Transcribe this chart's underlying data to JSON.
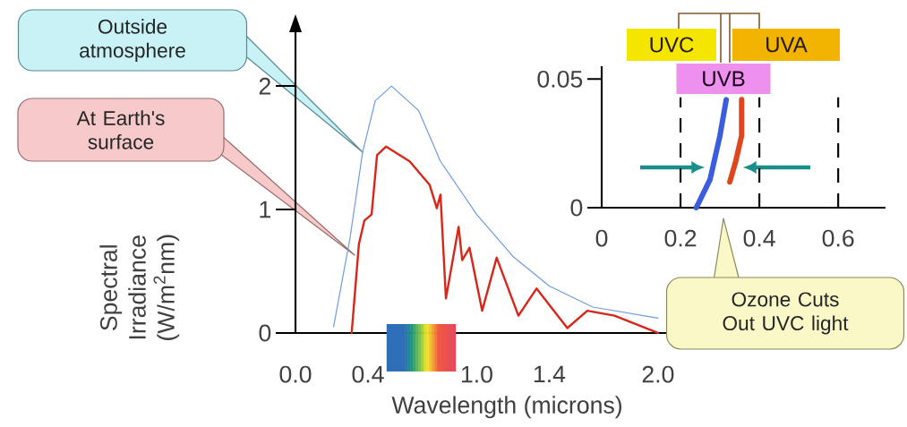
{
  "chart_data": [
    {
      "type": "line",
      "xlabel": "Wavelength (microns)",
      "ylabel": "Spectral Irradiance (W/m$^{2}$nm)",
      "xlim": [
        0,
        2.05
      ],
      "ylim": [
        0,
        2.45
      ],
      "xticks": [
        {
          "value": 0,
          "label": "0.0"
        },
        0.4,
        {
          "value": 1,
          "label": "1.0"
        },
        1.4,
        {
          "value": 2,
          "label": "2.0"
        }
      ],
      "yticks": [
        0,
        1,
        2
      ],
      "series": [
        {
          "color": "#6f9be0",
          "x": [
            0.21,
            0.3,
            0.37,
            0.44,
            0.53,
            0.68,
            0.8,
            1.0,
            1.2,
            1.4,
            1.64,
            2.0
          ],
          "values": [
            0.05,
            0.76,
            1.46,
            1.88,
            2.0,
            1.8,
            1.39,
            0.96,
            0.62,
            0.38,
            0.21,
            0.12
          ]
        },
        {
          "color": "#d8261a",
          "x": [
            0.31,
            0.35,
            0.38,
            0.42,
            0.45,
            0.5,
            0.63,
            0.74,
            0.78,
            0.8,
            0.83,
            0.9,
            0.92,
            0.96,
            1.03,
            1.11,
            1.23,
            1.33,
            1.5,
            1.61,
            1.76,
            2.0
          ],
          "values": [
            0,
            0.72,
            0.91,
            0.96,
            1.44,
            1.51,
            1.39,
            1.2,
            1.01,
            1.12,
            0.28,
            0.86,
            0.59,
            0.69,
            0.18,
            0.61,
            0.14,
            0.36,
            0.04,
            0.18,
            0.14,
            0
          ]
        }
      ],
      "annotations": [
        "Outside atmosphere",
        "At Earth's surface"
      ]
    },
    {
      "type": "line",
      "xlim": [
        0,
        0.72
      ],
      "ylim": [
        0,
        0.055
      ],
      "xticks": [
        0,
        0.2,
        0.4,
        0.6
      ],
      "yticks": [
        0,
        0.05
      ],
      "series": [
        {
          "color": "#3a5de0",
          "x": [
            0.24,
            0.275,
            0.3,
            0.316
          ],
          "values": [
            0,
            0.011,
            0.028,
            0.042
          ]
        },
        {
          "color": "#e0461e",
          "x": [
            0.325,
            0.34,
            0.355,
            0.355
          ],
          "values": [
            0.01,
            0.018,
            0.028,
            0.042
          ]
        }
      ],
      "ref_lines": [
        {
          "axis": "x",
          "value": 0.2,
          "line_style": "dashed"
        },
        {
          "axis": "x",
          "value": 0.4,
          "line_style": "dashed"
        },
        {
          "axis": "x",
          "value": 0.6,
          "line_style": "dashed"
        }
      ],
      "annotations": [
        "UVC",
        "UVA",
        "UVB",
        "Ozone Cuts Out UVC light"
      ]
    }
  ]
}
